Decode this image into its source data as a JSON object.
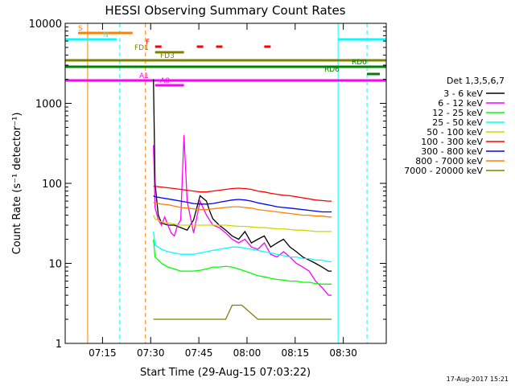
{
  "chart_data": {
    "type": "line",
    "title": "HESSI Observing Summary Count Rates",
    "xlabel": "Start Time (29-Aug-15 07:03:22)",
    "ylabel": "Count Rate (s⁻¹ detector⁻¹)",
    "xlim_minutes": [
      0,
      100
    ],
    "ylim": [
      1,
      10000
    ],
    "yscale": "log",
    "x_ticks": [
      {
        "label": "07:15",
        "min": 11.63
      },
      {
        "label": "07:30",
        "min": 26.63
      },
      {
        "label": "07:45",
        "min": 41.63
      },
      {
        "label": "08:00",
        "min": 56.63
      },
      {
        "label": "08:15",
        "min": 71.63
      },
      {
        "label": "08:30",
        "min": 86.63
      }
    ],
    "y_ticks": [
      {
        "label": "1",
        "value": 1
      },
      {
        "label": "10",
        "value": 10
      },
      {
        "label": "100",
        "value": 100
      },
      {
        "label": "1000",
        "value": 1000
      },
      {
        "label": "10000",
        "value": 10000
      }
    ],
    "legend": {
      "title": "Det 1,3,5,6,7",
      "placement": "right"
    },
    "series": [
      {
        "name": "3 - 6 keV",
        "color": "#000000",
        "x": [
          27.5,
          28,
          29,
          30,
          32,
          34,
          36,
          38,
          40,
          42,
          44,
          45,
          46,
          48,
          50,
          52,
          54,
          56,
          58,
          60,
          62,
          64,
          66,
          68,
          70,
          72,
          74,
          76,
          78,
          80,
          82,
          83
        ],
        "y": [
          2000,
          100,
          40,
          32,
          30,
          30,
          28,
          26,
          35,
          70,
          60,
          45,
          36,
          30,
          26,
          22,
          20,
          25,
          18,
          20,
          22,
          16,
          18,
          20,
          16,
          14,
          12,
          11,
          10,
          9,
          8,
          8
        ]
      },
      {
        "name": "6 - 12 keV",
        "color": "#ff00ff",
        "x": [
          27.5,
          28,
          29,
          30,
          31,
          32,
          33,
          34,
          35,
          36,
          37,
          38,
          40,
          42,
          44,
          46,
          48,
          50,
          52,
          54,
          56,
          58,
          60,
          62,
          64,
          66,
          68,
          70,
          72,
          74,
          76,
          78,
          80,
          82,
          83
        ],
        "y": [
          300,
          50,
          35,
          30,
          38,
          30,
          24,
          22,
          30,
          35,
          400,
          60,
          24,
          60,
          40,
          30,
          28,
          24,
          20,
          18,
          20,
          16,
          15,
          18,
          13,
          12,
          14,
          12,
          10,
          9,
          8,
          6,
          5,
          4,
          4
        ]
      },
      {
        "name": "12 - 25 keV",
        "color": "#00ff00",
        "x": [
          27.5,
          28,
          30,
          32,
          34,
          36,
          38,
          40,
          42,
          44,
          46,
          48,
          50,
          52,
          54,
          56,
          58,
          60,
          62,
          64,
          66,
          68,
          70,
          72,
          74,
          76,
          78,
          80,
          82,
          83
        ],
        "y": [
          20,
          12,
          10,
          9,
          8.5,
          8,
          8,
          8,
          8.2,
          8.5,
          9,
          9,
          9.2,
          9,
          8.5,
          8,
          7.5,
          7,
          6.8,
          6.5,
          6.3,
          6.2,
          6,
          6,
          5.8,
          5.8,
          5.6,
          5.5,
          5.5,
          5.5
        ]
      },
      {
        "name": "25 - 50 keV",
        "color": "#00ffff",
        "x": [
          27.5,
          28,
          30,
          32,
          34,
          36,
          38,
          40,
          42,
          44,
          46,
          48,
          50,
          52,
          54,
          56,
          58,
          60,
          62,
          64,
          66,
          68,
          70,
          72,
          74,
          76,
          78,
          80,
          82,
          83
        ],
        "y": [
          25,
          17,
          15,
          14,
          13.5,
          13,
          13,
          13,
          13.5,
          14,
          14.5,
          15,
          15.5,
          16,
          16,
          15.5,
          15,
          14.5,
          14,
          13.5,
          13,
          12.5,
          12,
          12,
          11.5,
          11.5,
          11,
          11,
          10.5,
          10.5
        ]
      },
      {
        "name": "50 - 100 keV",
        "color": "#d4d400",
        "x": [
          27.5,
          28,
          30,
          32,
          34,
          36,
          38,
          40,
          42,
          44,
          46,
          48,
          50,
          52,
          54,
          56,
          58,
          60,
          62,
          64,
          66,
          68,
          70,
          72,
          74,
          76,
          78,
          80,
          82,
          83
        ],
        "y": [
          40,
          36,
          33,
          32,
          31,
          30,
          30,
          30,
          30,
          30,
          30,
          30,
          30,
          29.5,
          29,
          29,
          28.5,
          28,
          28,
          27.5,
          27,
          27,
          26.5,
          26,
          26,
          25.5,
          25,
          25,
          25,
          25
        ]
      },
      {
        "name": "100 - 300 keV",
        "color": "#ff0000",
        "x": [
          27.5,
          28,
          30,
          32,
          34,
          36,
          38,
          40,
          42,
          44,
          46,
          48,
          50,
          52,
          54,
          56,
          58,
          60,
          62,
          64,
          66,
          68,
          70,
          72,
          74,
          76,
          78,
          80,
          82,
          83
        ],
        "y": [
          92,
          92,
          90,
          88,
          86,
          84,
          82,
          80,
          78,
          78,
          80,
          82,
          84,
          86,
          87,
          86,
          84,
          80,
          78,
          75,
          73,
          71,
          70,
          68,
          66,
          64,
          62,
          61,
          60,
          60
        ]
      },
      {
        "name": "300 - 800 keV",
        "color": "#0000ff",
        "x": [
          27.5,
          28,
          30,
          32,
          34,
          36,
          38,
          40,
          42,
          44,
          46,
          48,
          50,
          52,
          54,
          56,
          58,
          60,
          62,
          64,
          66,
          68,
          70,
          72,
          74,
          76,
          78,
          80,
          82,
          83
        ],
        "y": [
          70,
          68,
          66,
          64,
          62,
          60,
          58,
          56,
          55,
          55,
          56,
          58,
          60,
          62,
          63,
          62,
          60,
          57,
          55,
          53,
          51,
          50,
          49,
          48,
          47,
          46,
          45,
          44,
          44,
          44
        ]
      },
      {
        "name": "800 - 7000 keV",
        "color": "#ff8000",
        "x": [
          27.5,
          28,
          30,
          32,
          34,
          36,
          38,
          40,
          42,
          44,
          46,
          48,
          50,
          52,
          54,
          56,
          58,
          60,
          62,
          64,
          66,
          68,
          70,
          72,
          74,
          76,
          78,
          80,
          82,
          83
        ],
        "y": [
          58,
          57,
          55,
          54,
          52,
          50,
          49,
          48,
          47,
          47,
          48,
          49,
          50,
          51,
          51,
          50,
          49,
          47,
          46,
          45,
          44,
          43,
          42,
          41,
          40,
          40,
          39,
          39,
          38,
          38
        ]
      },
      {
        "name": "7000 - 20000 keV",
        "color": "#808000",
        "x": [
          27.5,
          30,
          35,
          40,
          45,
          50,
          52,
          55,
          60,
          65,
          70,
          75,
          80,
          83
        ],
        "y": [
          2,
          2,
          2,
          2,
          2,
          2,
          3,
          3,
          2,
          2,
          2,
          2,
          2,
          2
        ]
      }
    ],
    "annotations": [
      {
        "label": "S",
        "color": "#ff8000",
        "row": "top",
        "start": 4,
        "end": 21
      },
      {
        "label": "N",
        "color": "#00ffff",
        "row": "n",
        "start": 0,
        "end": 16
      },
      {
        "label": "",
        "color": "#00ffff",
        "row": "n",
        "start": 85,
        "end": 100
      },
      {
        "label": "F",
        "color": "#ff0000",
        "row": "f",
        "start": 28,
        "end": 30
      },
      {
        "label": "",
        "color": "#ff0000",
        "row": "f",
        "start": 41,
        "end": 43
      },
      {
        "label": "",
        "color": "#ff0000",
        "row": "f",
        "start": 47,
        "end": 49
      },
      {
        "label": "",
        "color": "#ff0000",
        "row": "f",
        "start": 62,
        "end": 64
      },
      {
        "label": "FD1",
        "color": "#808000",
        "row": "fd1",
        "start": 28,
        "end": 37
      },
      {
        "label": "FD3",
        "color": "#808000",
        "row": "fd3",
        "start": 0,
        "end": 100
      },
      {
        "label": "RD0",
        "color": "#008000",
        "row": "rd0",
        "start": 0,
        "end": 100
      },
      {
        "label": "RD6",
        "color": "#008000",
        "row": "rd6",
        "start": 94,
        "end": 98
      },
      {
        "label": "A1",
        "color": "#ff00ff",
        "row": "a1",
        "start": 0,
        "end": 100
      },
      {
        "label": "A0",
        "color": "#ff00ff",
        "row": "a0",
        "start": 28,
        "end": 37
      }
    ],
    "vlines": [
      {
        "min": 7,
        "color": "#ff8000",
        "style": "solid"
      },
      {
        "min": 17,
        "color": "#00ffff",
        "style": "dashed"
      },
      {
        "min": 25,
        "color": "#ff8000",
        "style": "dashed"
      },
      {
        "min": 85,
        "color": "#00ffff",
        "style": "solid"
      },
      {
        "min": 94,
        "color": "#00ffff",
        "style": "dashed"
      }
    ],
    "grid": false
  },
  "footer_timestamp": "17-Aug-2017 15:21"
}
